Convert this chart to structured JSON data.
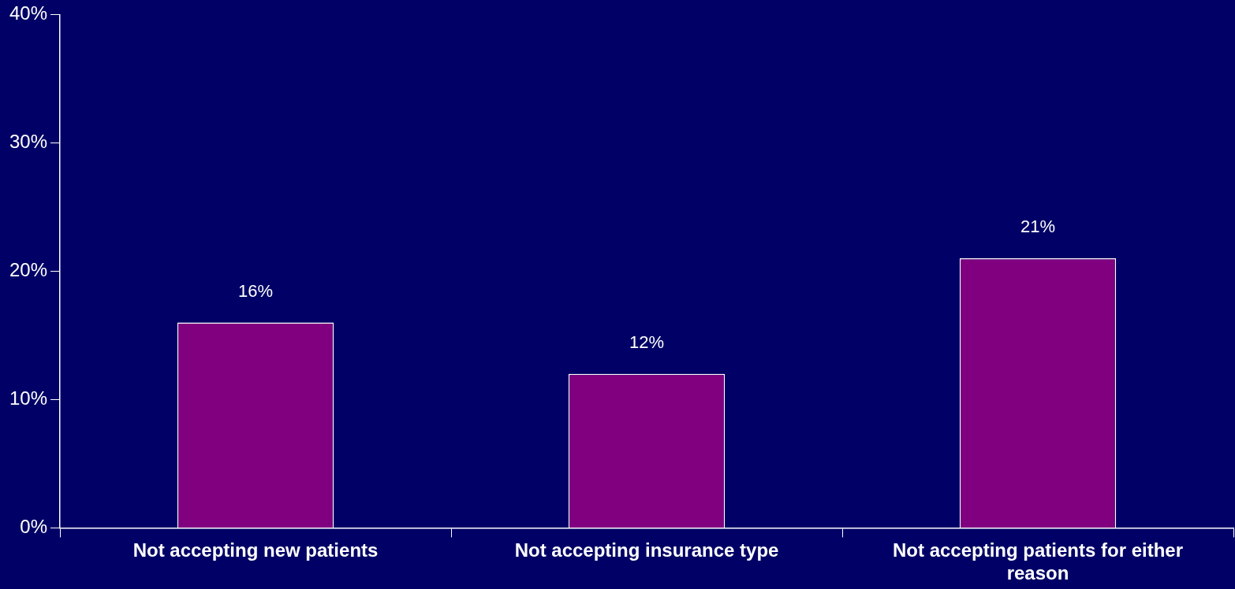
{
  "chart_data": {
    "type": "bar",
    "categories": [
      "Not accepting new patients",
      "Not accepting insurance type",
      "Not accepting patients for either reason"
    ],
    "values": [
      16,
      12,
      21
    ],
    "value_labels": [
      "16%",
      "12%",
      "21%"
    ],
    "color": "#800080",
    "ylim": [
      0,
      40
    ],
    "yticks": [
      {
        "value": 0,
        "label": "0%"
      },
      {
        "value": 10,
        "label": "10%"
      },
      {
        "value": 20,
        "label": "20%"
      },
      {
        "value": 30,
        "label": "30%"
      },
      {
        "value": 40,
        "label": "40%"
      }
    ],
    "legend": false
  }
}
